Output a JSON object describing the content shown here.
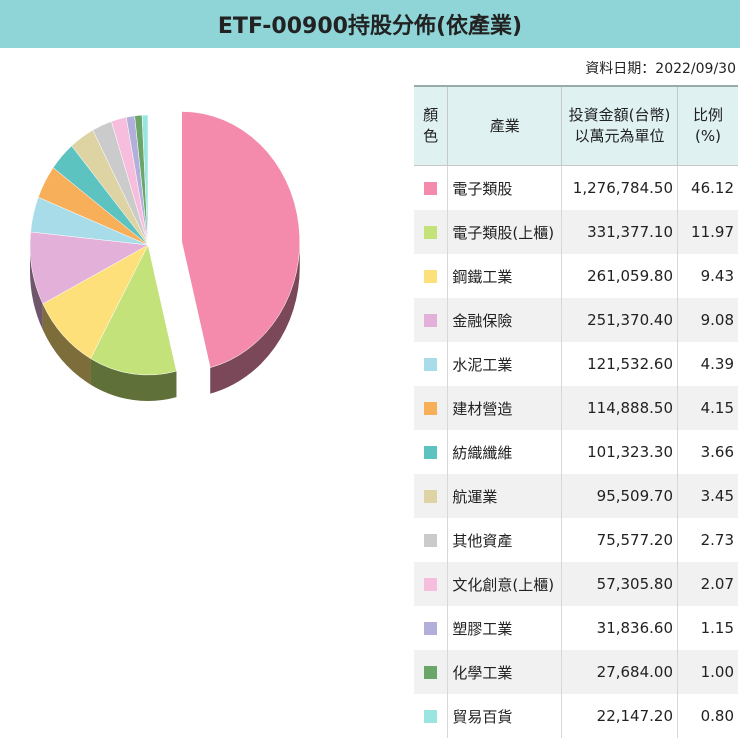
{
  "title": "ETF-00900持股分佈(依產業)",
  "date_label": "資料日期：2022/09/30",
  "table": {
    "headers": {
      "color": "顏色",
      "industry": "產業",
      "amount_line1": "投資金額(台幣)",
      "amount_line2": "以萬元為單位",
      "ratio": "比例(%)"
    }
  },
  "chart_data": {
    "type": "pie",
    "categories": [
      "電子類股",
      "電子類股(上櫃)",
      "鋼鐵工業",
      "金融保險",
      "水泥工業",
      "建材營造",
      "紡織纖維",
      "航運業",
      "其他資產",
      "文化創意(上櫃)",
      "塑膠工業",
      "化學工業",
      "貿易百貨"
    ],
    "amounts": [
      "1,276,784.50",
      "331,377.10",
      "261,059.80",
      "251,370.40",
      "121,532.60",
      "114,888.50",
      "101,323.30",
      "95,509.70",
      "75,577.20",
      "57,305.80",
      "31,836.60",
      "27,684.00",
      "22,147.20"
    ],
    "values": [
      46.12,
      11.97,
      9.43,
      9.08,
      4.39,
      4.15,
      3.66,
      3.45,
      2.73,
      2.07,
      1.15,
      1.0,
      0.8
    ],
    "colors": [
      "#f48aac",
      "#c3e37a",
      "#fde07a",
      "#e3b0da",
      "#a9dce9",
      "#f8af5a",
      "#5cc3c0",
      "#ddd3a3",
      "#cbcbcb",
      "#f6bedc",
      "#b2b0da",
      "#6aa66a",
      "#9be5e1"
    ],
    "side_colors": [
      "#7a4858",
      "#5f7039",
      "#7d6d3b",
      "#6f566b",
      "#527179",
      "#7a5627",
      "#2d6160",
      "#6d6850",
      "#646464",
      "#7a5e6d",
      "#58576d",
      "#345234",
      "#4d7270"
    ],
    "exploded_slice": "電子類股",
    "legend": "right"
  }
}
